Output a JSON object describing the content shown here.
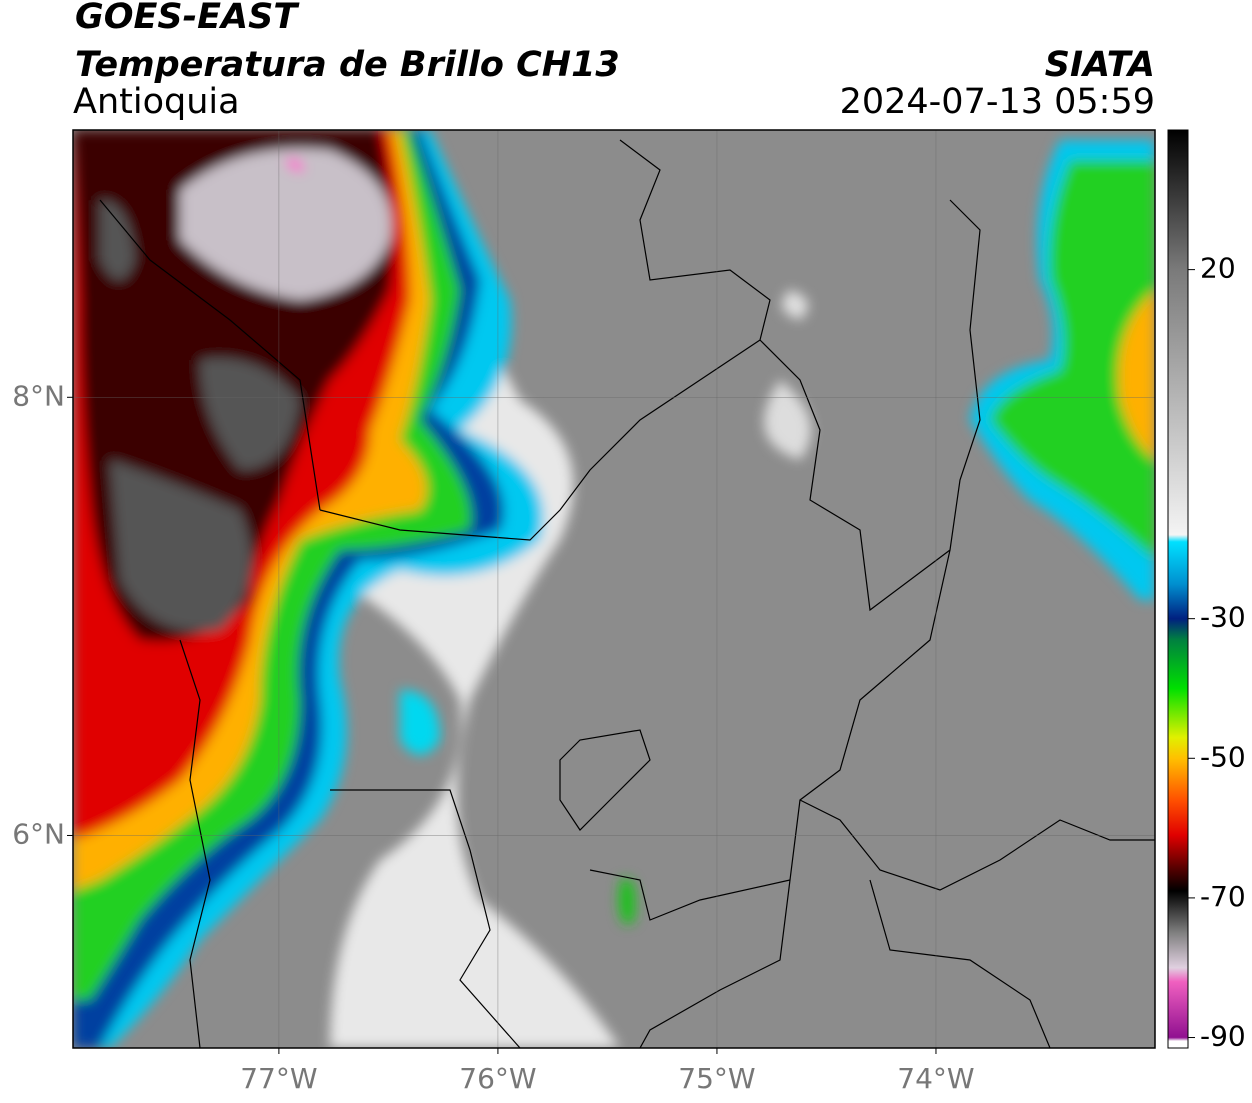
{
  "header": {
    "line1": "GOES-EAST",
    "line2": "Temperatura de Brillo CH13",
    "line3": "Antioquia",
    "source": "SIATA",
    "datetime": "2024-07-13 05:59"
  },
  "map": {
    "xlim": [
      -77.94,
      -73
    ],
    "ylim": [
      5.03,
      9.22
    ],
    "xticks": [
      {
        "value": -77,
        "label": "77°W"
      },
      {
        "value": -76,
        "label": "76°W"
      },
      {
        "value": -75,
        "label": "75°W"
      },
      {
        "value": -74,
        "label": "74°W"
      }
    ],
    "yticks": [
      {
        "value": 8,
        "label": "8°N"
      },
      {
        "value": 6,
        "label": "6°N"
      }
    ],
    "grid": true
  },
  "colorbar": {
    "clim": [
      -91.5,
      40
    ],
    "ticks": [
      20,
      -30,
      -50,
      -70,
      -90
    ],
    "colormap": [
      {
        "value": 40,
        "color": "#000000"
      },
      {
        "value": 20,
        "color": "#7a7a7a"
      },
      {
        "value": -18,
        "color": "#f4f4f4"
      },
      {
        "value": -19,
        "color": "#00e0ff"
      },
      {
        "value": -25,
        "color": "#0090d0"
      },
      {
        "value": -30,
        "color": "#002080"
      },
      {
        "value": -33,
        "color": "#008040"
      },
      {
        "value": -40,
        "color": "#00e000"
      },
      {
        "value": -47,
        "color": "#e0f000"
      },
      {
        "value": -50,
        "color": "#ffc000"
      },
      {
        "value": -56,
        "color": "#ff5000"
      },
      {
        "value": -61,
        "color": "#e00000"
      },
      {
        "value": -66,
        "color": "#500000"
      },
      {
        "value": -69,
        "color": "#000000"
      },
      {
        "value": -75,
        "color": "#808080"
      },
      {
        "value": -80,
        "color": "#e0d0e0"
      },
      {
        "value": -82,
        "color": "#f060c0"
      },
      {
        "value": -90,
        "color": "#901090"
      },
      {
        "value": -90.5,
        "color": "#ffffff"
      }
    ]
  }
}
